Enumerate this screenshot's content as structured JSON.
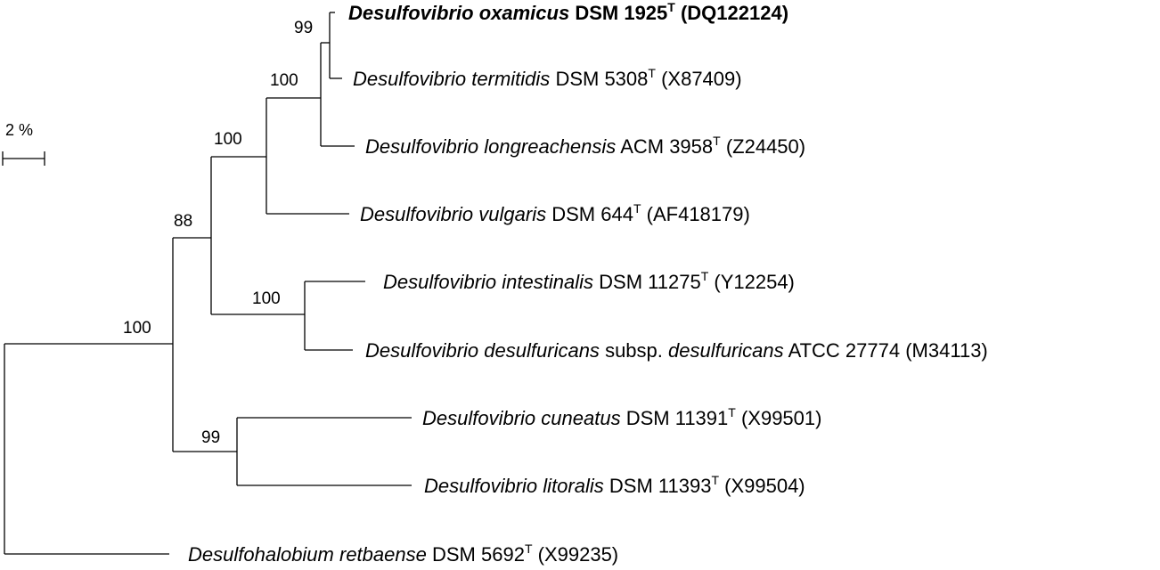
{
  "tree": {
    "scale_bar": {
      "label": "2 %"
    },
    "taxa": [
      {
        "id": "oxamicus",
        "genus": "Desulfovibrio",
        "species": "oxamicus",
        "strain": "DSM 1925",
        "type_strain": true,
        "accession": "(DQ122124)",
        "bold": true
      },
      {
        "id": "termitidis",
        "genus": "Desulfovibrio",
        "species": "termitidis",
        "strain": "DSM 5308",
        "type_strain": true,
        "accession": "(X87409)",
        "bold": false
      },
      {
        "id": "longreachensis",
        "genus": "Desulfovibrio",
        "species": "longreachensis",
        "strain": "ACM 3958",
        "type_strain": true,
        "accession": "(Z24450)",
        "bold": false
      },
      {
        "id": "vulgaris",
        "genus": "Desulfovibrio",
        "species": "vulgaris",
        "strain": "DSM 644",
        "type_strain": true,
        "accession": "(AF418179)",
        "bold": false
      },
      {
        "id": "intestinalis",
        "genus": "Desulfovibrio",
        "species": "intestinalis",
        "strain": "DSM 11275",
        "type_strain": true,
        "accession": "(Y12254)",
        "bold": false
      },
      {
        "id": "desulfuricans",
        "genus": "Desulfovibrio",
        "species": "desulfuricans",
        "subsp_word": "subsp.",
        "subspecies": "desulfuricans",
        "strain": "ATCC 27774",
        "type_strain": false,
        "accession": "(M34113)",
        "bold": false
      },
      {
        "id": "cuneatus",
        "genus": "Desulfovibrio",
        "species": "cuneatus",
        "strain": "DSM 11391",
        "type_strain": true,
        "accession": "(X99501)",
        "bold": false
      },
      {
        "id": "litoralis",
        "genus": "Desulfovibrio",
        "species": "litoralis",
        "strain": "DSM 11393",
        "type_strain": true,
        "accession": "(X99504)",
        "bold": false
      },
      {
        "id": "retbaense",
        "genus": "Desulfohalobium",
        "species": "retbaense",
        "strain": "DSM 5692",
        "type_strain": true,
        "accession": "(X99235)",
        "bold": false
      }
    ],
    "type_strain_mark": "T",
    "bootstrap": {
      "oxamicus_termitidis": "99",
      "with_longreachensis": "100",
      "with_vulgaris": "100",
      "desulfovibrio_core": "88",
      "intestinalis_desulfuricans": "100",
      "cuneatus_litoralis": "99",
      "ingroup": "100"
    }
  }
}
